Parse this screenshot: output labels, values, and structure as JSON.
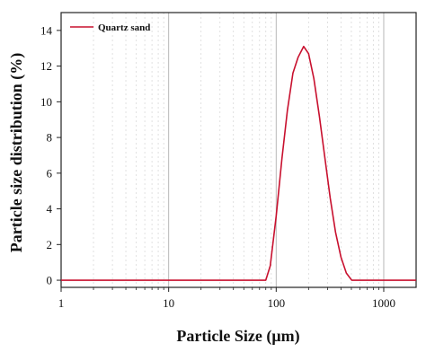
{
  "chart_data": {
    "type": "line",
    "xlabel": "Particle Size (μm)",
    "ylabel": "Particle size distribution (%)",
    "x_scale": "log",
    "xlim": [
      1,
      2000
    ],
    "ylim": [
      -0.4,
      15
    ],
    "grid": "vertical dashed minor gridlines",
    "legend_position": "top-left",
    "x_ticks": [
      {
        "value": 1,
        "label": "1"
      },
      {
        "value": 10,
        "label": "10"
      },
      {
        "value": 100,
        "label": "100"
      },
      {
        "value": 1000,
        "label": "1000"
      }
    ],
    "y_ticks": [
      {
        "value": 0,
        "label": "0"
      },
      {
        "value": 2,
        "label": "2"
      },
      {
        "value": 4,
        "label": "4"
      },
      {
        "value": 6,
        "label": "6"
      },
      {
        "value": 8,
        "label": "8"
      },
      {
        "value": 10,
        "label": "10"
      },
      {
        "value": 12,
        "label": "12"
      },
      {
        "value": 14,
        "label": "14"
      }
    ],
    "series": [
      {
        "name": "Quartz sand",
        "color": "#c8102e",
        "points": [
          [
            1,
            0
          ],
          [
            80,
            0
          ],
          [
            88,
            0.8
          ],
          [
            100,
            3.6
          ],
          [
            113,
            6.8
          ],
          [
            127,
            9.5
          ],
          [
            143,
            11.6
          ],
          [
            160,
            12.5
          ],
          [
            180,
            13.1
          ],
          [
            200,
            12.7
          ],
          [
            224,
            11.3
          ],
          [
            252,
            9.2
          ],
          [
            283,
            6.9
          ],
          [
            318,
            4.6
          ],
          [
            356,
            2.7
          ],
          [
            400,
            1.3
          ],
          [
            449,
            0.4
          ],
          [
            504,
            0
          ],
          [
            2000,
            0
          ]
        ]
      }
    ]
  }
}
